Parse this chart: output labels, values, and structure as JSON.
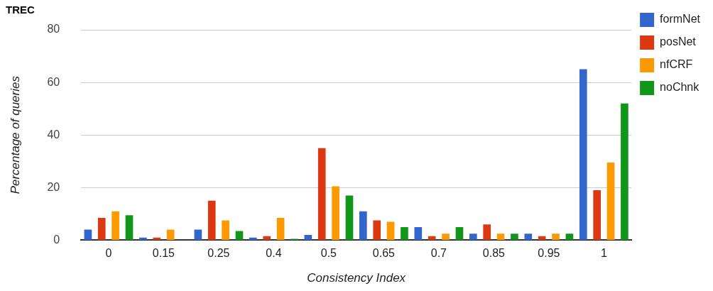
{
  "chart_data": {
    "type": "bar",
    "title": "TREC",
    "xlabel": "Consistency Index",
    "ylabel": "Percentage of queries",
    "categories": [
      "0",
      "0.15",
      "0.25",
      "0.4",
      "0.5",
      "0.65",
      "0.7",
      "0.85",
      "0.95",
      "1"
    ],
    "series": [
      {
        "name": "formNet",
        "color": "#3366cc",
        "values": [
          4,
          1,
          4,
          1,
          2,
          11,
          5,
          2.5,
          2.5,
          65
        ]
      },
      {
        "name": "posNet",
        "color": "#dc3912",
        "values": [
          8.5,
          1,
          15,
          1.5,
          35,
          7.5,
          1.5,
          6,
          1.5,
          19
        ]
      },
      {
        "name": "nfCRF",
        "color": "#ff9900",
        "values": [
          11,
          4,
          7.5,
          8.5,
          20.5,
          7,
          2.5,
          2.5,
          2.5,
          29.5
        ]
      },
      {
        "name": "noChnk",
        "color": "#109618",
        "values": [
          9.5,
          0,
          3.5,
          0.5,
          17,
          5,
          5,
          2.5,
          2.5,
          52
        ]
      }
    ],
    "ylim": [
      0,
      80
    ],
    "yticks": [
      0,
      20,
      40,
      60,
      80
    ],
    "grid": "y",
    "legend": "right"
  }
}
